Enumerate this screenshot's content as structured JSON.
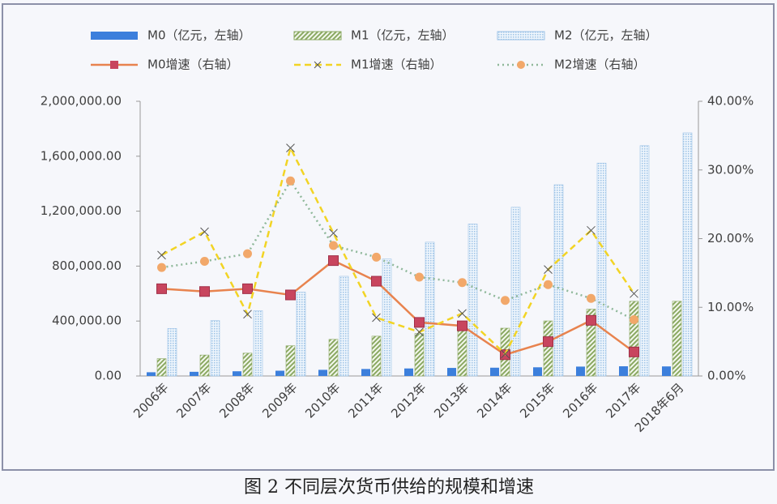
{
  "chart_data": {
    "type": "bar",
    "title": "图 2 不同层次货币供给的规模和增速",
    "categories": [
      "2006年",
      "2007年",
      "2008年",
      "2009年",
      "2010年",
      "2011年",
      "2012年",
      "2013年",
      "2014年",
      "2015年",
      "2016年",
      "2017年",
      "2018年6月"
    ],
    "ylim": [
      0,
      2000000
    ],
    "yticks": [
      {
        "value": 0,
        "label": "0.00"
      },
      {
        "value": 400000,
        "label": "400,000.00"
      },
      {
        "value": 800000,
        "label": "800,000.00"
      },
      {
        "value": 1200000,
        "label": "1,200,000.00"
      },
      {
        "value": 1600000,
        "label": "1,600,000.00"
      },
      {
        "value": 2000000,
        "label": "2,000,000.00"
      }
    ],
    "y2lim": [
      0,
      40
    ],
    "y2ticks": [
      {
        "value": 0,
        "label": "0.00%"
      },
      {
        "value": 10,
        "label": "10.00%"
      },
      {
        "value": 20,
        "label": "20.00%"
      },
      {
        "value": 30,
        "label": "30.00%"
      },
      {
        "value": 40,
        "label": "40.00%"
      }
    ],
    "series": [
      {
        "name": "M0（亿元，左轴）",
        "type": "bar",
        "color": "#3c7fdc",
        "pattern": "solid",
        "values": [
          27073,
          30334,
          34219,
          38246,
          44628,
          50748,
          54660,
          58574,
          60260,
          63217,
          68304,
          70646,
          69589
        ]
      },
      {
        "name": "M1（亿元，左轴）",
        "type": "bar",
        "color": "#8aa862",
        "pattern": "hatch",
        "values": [
          126035,
          152560,
          166217,
          220002,
          266622,
          289848,
          308665,
          337291,
          348056,
          400953,
          486557,
          543790,
          543945
        ]
      },
      {
        "name": "M2（亿元，左轴）",
        "type": "bar",
        "color": "#9cc2e6",
        "pattern": "dots",
        "values": [
          345604,
          403442,
          475167,
          610225,
          725852,
          851591,
          974149,
          1106525,
          1228375,
          1392278,
          1550067,
          1676769,
          1770179
        ]
      },
      {
        "name": "M0增速（右轴）",
        "type": "line",
        "axis": "y2",
        "color": "#e8834e",
        "dash": "solid",
        "marker": "square",
        "marker_color": "#c8455e",
        "values": [
          12.7,
          12.3,
          12.7,
          11.8,
          16.8,
          13.8,
          7.8,
          7.3,
          3.1,
          5.0,
          8.1,
          3.5,
          null
        ]
      },
      {
        "name": "M1增速（右轴）",
        "type": "line",
        "axis": "y2",
        "color": "#f2d424",
        "dash": "dashed",
        "marker": "x",
        "marker_color": "#555555",
        "values": [
          17.6,
          21.0,
          9.0,
          33.2,
          20.8,
          8.5,
          6.4,
          9.1,
          3.2,
          15.5,
          21.2,
          12.0,
          null
        ]
      },
      {
        "name": "M2增速（右轴）",
        "type": "line",
        "axis": "y2",
        "color": "#8fb89a",
        "dash": "dotted",
        "marker": "circle",
        "marker_color": "#f2a86a",
        "values": [
          15.8,
          16.7,
          17.8,
          28.4,
          19.0,
          17.3,
          14.4,
          13.6,
          11.0,
          13.3,
          11.3,
          8.2,
          null
        ]
      }
    ]
  }
}
